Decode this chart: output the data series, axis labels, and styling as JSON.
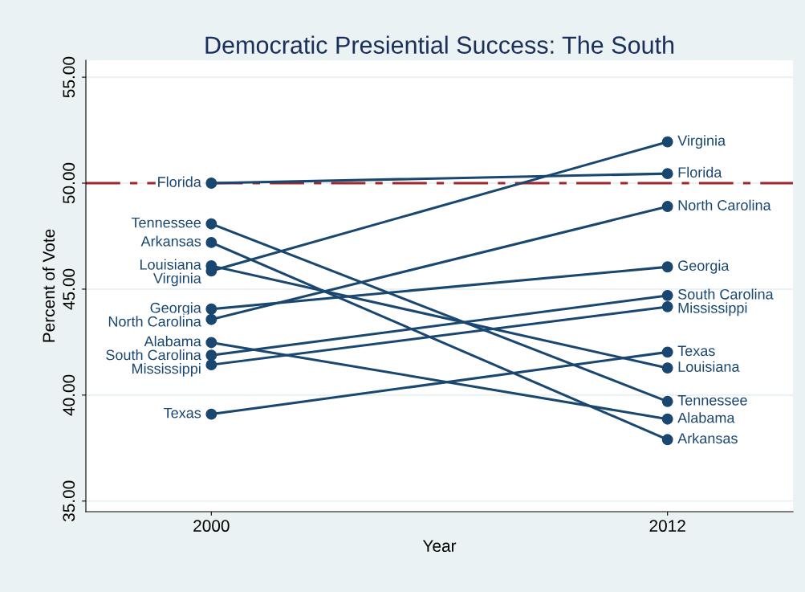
{
  "chart_data": {
    "type": "line",
    "title": "Democratic Presiential Success: The South",
    "xlabel": "Year",
    "ylabel": "Percent of Vote",
    "x": [
      2000,
      2012
    ],
    "series": [
      {
        "name": "Florida",
        "color": "#1a476f",
        "values": [
          50.0,
          50.45
        ]
      },
      {
        "name": "Tennessee",
        "color": "#1a476f",
        "values": [
          48.08,
          39.7
        ]
      },
      {
        "name": "Arkansas",
        "color": "#1a476f",
        "values": [
          47.2,
          37.9
        ]
      },
      {
        "name": "Louisiana",
        "color": "#1a476f",
        "values": [
          46.1,
          41.28
        ]
      },
      {
        "name": "Virginia",
        "color": "#1a476f",
        "values": [
          45.86,
          51.95
        ]
      },
      {
        "name": "Georgia",
        "color": "#1a476f",
        "values": [
          44.06,
          46.05
        ]
      },
      {
        "name": "North Carolina",
        "color": "#1a476f",
        "values": [
          43.57,
          48.9
        ]
      },
      {
        "name": "Alabama",
        "color": "#1a476f",
        "values": [
          42.48,
          38.87
        ]
      },
      {
        "name": "South Carolina",
        "color": "#1a476f",
        "values": [
          41.88,
          44.7
        ]
      },
      {
        "name": "Mississippi",
        "color": "#1a476f",
        "values": [
          41.43,
          44.17
        ]
      },
      {
        "name": "Texas",
        "color": "#1a476f",
        "values": [
          39.1,
          42.03
        ]
      }
    ],
    "xlim": [
      1996.7,
      2015.3
    ],
    "xticks": [
      2000,
      2012
    ],
    "ylim": [
      34.5,
      55.8
    ],
    "yticks": [
      {
        "value": 35,
        "label": "35.00"
      },
      {
        "value": 40,
        "label": "40.00"
      },
      {
        "value": 45,
        "label": "45.00"
      },
      {
        "value": 50,
        "label": "50.00"
      },
      {
        "value": 55,
        "label": "55.00"
      }
    ],
    "ref_lines": [
      {
        "axis": "y",
        "value": 50,
        "color": "#a0282d",
        "line_style": "dashed"
      }
    ],
    "grid": "y",
    "marker": "circle",
    "line_style": "solid",
    "legend": false
  }
}
